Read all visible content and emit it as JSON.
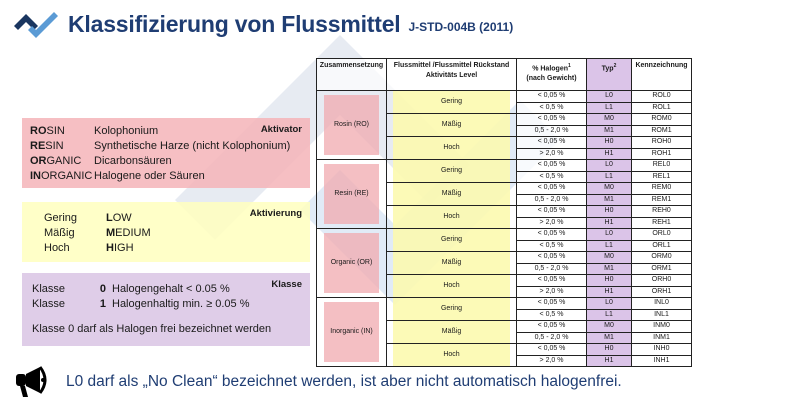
{
  "header": {
    "title": "Klassifizierung von Flussmittel",
    "subtitle": "J-STD-004B (2011)",
    "logo_icon": "logo-chevron-icon"
  },
  "colors": {
    "brand_dark": "#1f3d73",
    "brand_light": "#5b9bd5",
    "aktivator_bg": "#f4b4b8",
    "aktivierung_bg": "#ffffbe",
    "klasse_bg": "#dcc8e6",
    "typ_bg": "#d7bee6"
  },
  "aktivator": {
    "tag": "Aktivator",
    "items": [
      {
        "bold": "RO",
        "rest": "SIN",
        "desc": "Kolophonium"
      },
      {
        "bold": "RE",
        "rest": "SIN",
        "desc": "Synthetische Harze (nicht Kolophonium)"
      },
      {
        "bold": "OR",
        "rest": "GANIC",
        "desc": "Dicarbonsäuren"
      },
      {
        "bold": "IN",
        "rest": "ORGANIC",
        "desc": "Halogene oder Säuren"
      }
    ]
  },
  "aktivierung": {
    "tag": "Aktivierung",
    "items": [
      {
        "de": "Gering",
        "bold": "L",
        "rest": "OW"
      },
      {
        "de": "Mäßig",
        "bold": "M",
        "rest": "EDIUM"
      },
      {
        "de": "Hoch",
        "bold": "H",
        "rest": "IGH"
      }
    ]
  },
  "klasse": {
    "tag": "Klasse",
    "items": [
      {
        "label": "Klasse",
        "num": "0",
        "desc": "Halogengehalt < 0.05 %"
      },
      {
        "label": "Klasse",
        "num": "1",
        "desc": "Halogenhaltig  min. ≥ 0.05 %"
      }
    ],
    "note": "Klasse 0 darf als Halogen frei bezeichnet werden"
  },
  "table": {
    "headers": {
      "composition": "Zusammensetzung",
      "level_line1": "Flussmittel /Flussmittel Rückstand",
      "level_line2": "Aktivitäts Level",
      "halogen_line1": "% Halogen",
      "halogen_sup": "1",
      "halogen_line2": "(nach Gewicht)",
      "type": "Typ",
      "type_sup": "2",
      "code": "Kennzeichnung"
    },
    "groups": [
      {
        "composition": "Rosin (RO)",
        "levels": [
          {
            "name": "Gering",
            "rows": [
              {
                "hal": "< 0,05 %",
                "typ": "L0",
                "code": "ROL0"
              },
              {
                "hal": "< 0,5 %",
                "typ": "L1",
                "code": "ROL1"
              }
            ]
          },
          {
            "name": "Mäßig",
            "rows": [
              {
                "hal": "< 0,05 %",
                "typ": "M0",
                "code": "ROM0"
              },
              {
                "hal": "0,5 - 2,0 %",
                "typ": "M1",
                "code": "ROM1"
              }
            ]
          },
          {
            "name": "Hoch",
            "rows": [
              {
                "hal": "< 0,05 %",
                "typ": "H0",
                "code": "ROH0"
              },
              {
                "hal": "> 2,0 %",
                "typ": "H1",
                "code": "ROH1"
              }
            ]
          }
        ]
      },
      {
        "composition": "Resin (RE)",
        "levels": [
          {
            "name": "Gering",
            "rows": [
              {
                "hal": "< 0,05 %",
                "typ": "L0",
                "code": "REL0"
              },
              {
                "hal": "< 0,5 %",
                "typ": "L1",
                "code": "REL1"
              }
            ]
          },
          {
            "name": "Mäßig",
            "rows": [
              {
                "hal": "< 0,05 %",
                "typ": "M0",
                "code": "REM0"
              },
              {
                "hal": "0,5 - 2,0 %",
                "typ": "M1",
                "code": "REM1"
              }
            ]
          },
          {
            "name": "Hoch",
            "rows": [
              {
                "hal": "< 0,05 %",
                "typ": "H0",
                "code": "REH0"
              },
              {
                "hal": "> 2,0 %",
                "typ": "H1",
                "code": "REH1"
              }
            ]
          }
        ]
      },
      {
        "composition": "Organic (OR)",
        "levels": [
          {
            "name": "Gering",
            "rows": [
              {
                "hal": "< 0,05 %",
                "typ": "L0",
                "code": "ORL0"
              },
              {
                "hal": "< 0,5 %",
                "typ": "L1",
                "code": "ORL1"
              }
            ]
          },
          {
            "name": "Mäßig",
            "rows": [
              {
                "hal": "< 0,05 %",
                "typ": "M0",
                "code": "ORM0"
              },
              {
                "hal": "0,5 - 2,0 %",
                "typ": "M1",
                "code": "ORM1"
              }
            ]
          },
          {
            "name": "Hoch",
            "rows": [
              {
                "hal": "< 0,05 %",
                "typ": "H0",
                "code": "ORH0"
              },
              {
                "hal": "> 2,0 %",
                "typ": "H1",
                "code": "ORH1"
              }
            ]
          }
        ]
      },
      {
        "composition": "Inorganic (IN)",
        "levels": [
          {
            "name": "Gering",
            "rows": [
              {
                "hal": "< 0,05 %",
                "typ": "L0",
                "code": "INL0"
              },
              {
                "hal": "< 0,5 %",
                "typ": "L1",
                "code": "INL1"
              }
            ]
          },
          {
            "name": "Mäßig",
            "rows": [
              {
                "hal": "< 0,05 %",
                "typ": "M0",
                "code": "INM0"
              },
              {
                "hal": "0,5 - 2,0 %",
                "typ": "M1",
                "code": "INM1"
              }
            ]
          },
          {
            "name": "Hoch",
            "rows": [
              {
                "hal": "< 0,05 %",
                "typ": "H0",
                "code": "INH0"
              },
              {
                "hal": "> 2,0 %",
                "typ": "H1",
                "code": "INH1"
              }
            ]
          }
        ]
      }
    ]
  },
  "footer": {
    "icon": "megaphone-icon",
    "text": "L0 darf als „No Clean“ bezeichnet werden, ist aber nicht automatisch halogenfrei."
  }
}
